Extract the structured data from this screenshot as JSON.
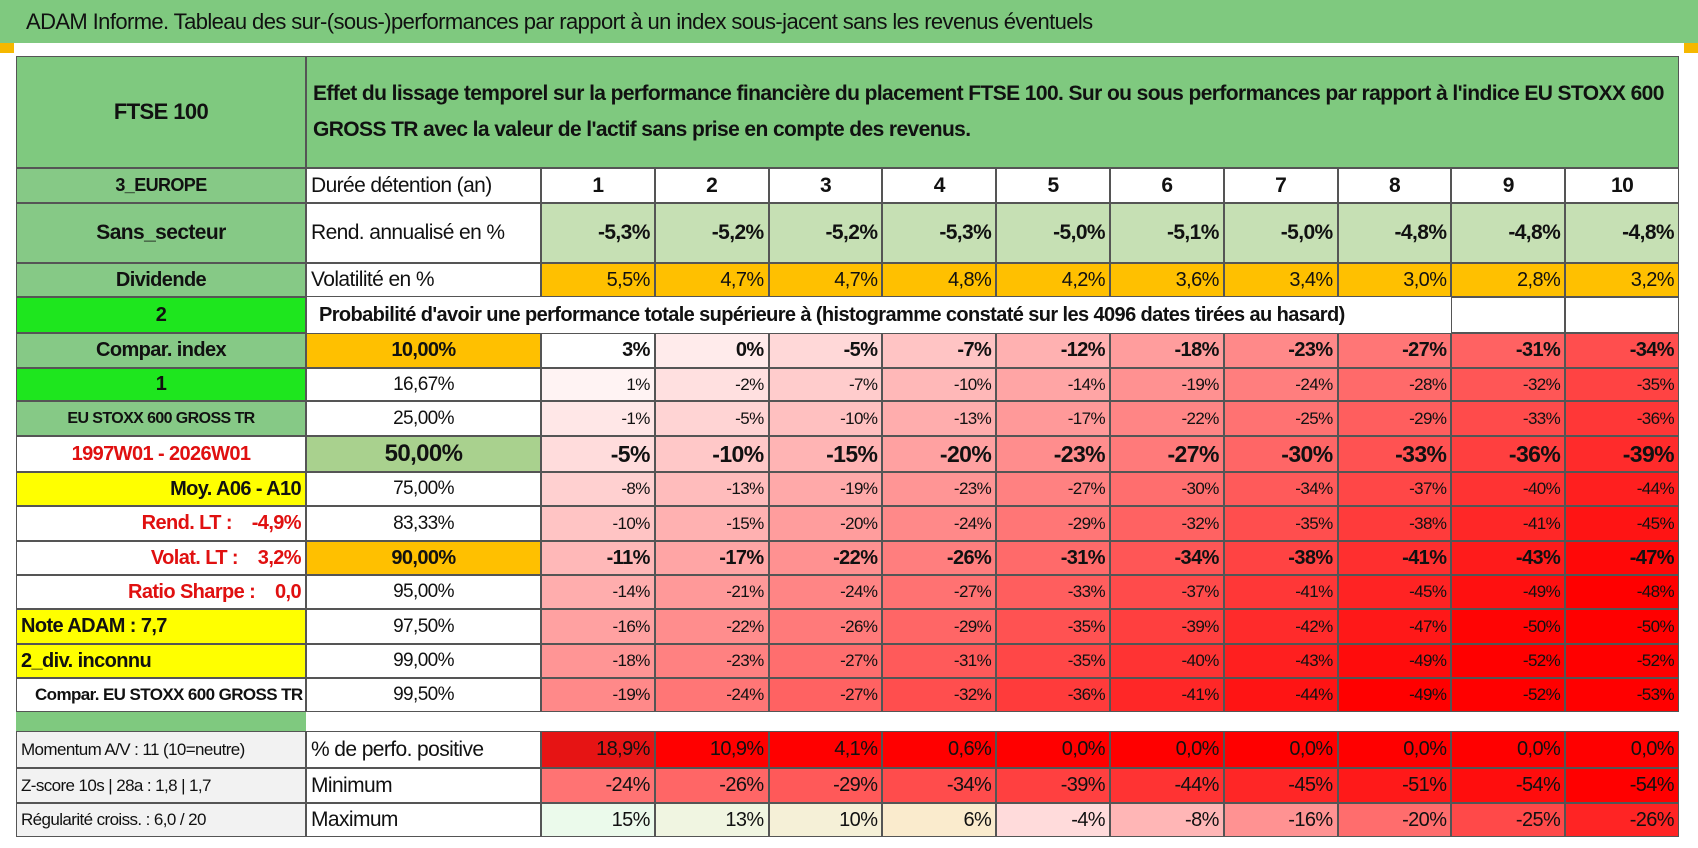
{
  "title": "ADAM Informe. Tableau des sur-(sous-)performances par rapport à un index sous-jacent sans les revenus éventuels",
  "header": {
    "left": "FTSE 100",
    "description": "Effet du lissage temporel sur la performance financière du placement FTSE 100. Sur ou sous performances par rapport à l'indice EU STOXX 600 GROSS TR avec la valeur de l'actif sans prise en compte des revenus."
  },
  "rows": [
    {
      "label": "3_EUROPE",
      "name": "Durée détention (an)",
      "cells": [
        "1",
        "2",
        "3",
        "4",
        "5",
        "6",
        "7",
        "8",
        "9",
        "10"
      ]
    },
    {
      "label": "Sans_secteur",
      "name": "Rend. annualisé en %",
      "cells": [
        "-5,3%",
        "-5,2%",
        "-5,2%",
        "-5,3%",
        "-5,0%",
        "-5,1%",
        "-5,0%",
        "-4,8%",
        "-4,8%",
        "-4,8%"
      ]
    },
    {
      "label": "Dividende",
      "name": "Volatilité en %",
      "cells": [
        "5,5%",
        "4,7%",
        "4,7%",
        "4,8%",
        "4,2%",
        "3,6%",
        "3,4%",
        "3,0%",
        "2,8%",
        "3,2%"
      ]
    },
    {
      "label": "2",
      "name": "Probabilité d'avoir une performance totale supérieure à (histogramme constaté sur les 4096 dates tirées au hasard)"
    },
    {
      "label": "Compar. index",
      "name": "10,00%",
      "cells": [
        "3%",
        "0%",
        "-5%",
        "-7%",
        "-12%",
        "-18%",
        "-23%",
        "-27%",
        "-31%",
        "-34%"
      ]
    },
    {
      "label": "1",
      "name": "16,67%",
      "cells": [
        "1%",
        "-2%",
        "-7%",
        "-10%",
        "-14%",
        "-19%",
        "-24%",
        "-28%",
        "-32%",
        "-35%"
      ]
    },
    {
      "label": "EU STOXX 600 GROSS TR",
      "name": "25,00%",
      "cells": [
        "-1%",
        "-5%",
        "-10%",
        "-13%",
        "-17%",
        "-22%",
        "-25%",
        "-29%",
        "-33%",
        "-36%"
      ]
    },
    {
      "label": "1997W01 - 2026W01",
      "name": "50,00%",
      "cells": [
        "-5%",
        "-10%",
        "-15%",
        "-20%",
        "-23%",
        "-27%",
        "-30%",
        "-33%",
        "-36%",
        "-39%"
      ]
    },
    {
      "label": "Moy. A06 - A10",
      "name": "75,00%",
      "cells": [
        "-8%",
        "-13%",
        "-19%",
        "-23%",
        "-27%",
        "-30%",
        "-34%",
        "-37%",
        "-40%",
        "-44%"
      ]
    },
    {
      "label": "Rend. LT :    -4,9%",
      "name": "83,33%",
      "cells": [
        "-10%",
        "-15%",
        "-20%",
        "-24%",
        "-29%",
        "-32%",
        "-35%",
        "-38%",
        "-41%",
        "-45%"
      ]
    },
    {
      "label": "Volat. LT :    3,2%",
      "name": "90,00%",
      "cells": [
        "-11%",
        "-17%",
        "-22%",
        "-26%",
        "-31%",
        "-34%",
        "-38%",
        "-41%",
        "-43%",
        "-47%"
      ]
    },
    {
      "label": "Ratio Sharpe :    0,0",
      "name": "95,00%",
      "cells": [
        "-14%",
        "-21%",
        "-24%",
        "-27%",
        "-33%",
        "-37%",
        "-41%",
        "-45%",
        "-49%",
        "-48%"
      ]
    },
    {
      "label": "Note ADAM : 7,7",
      "name": "97,50%",
      "cells": [
        "-16%",
        "-22%",
        "-26%",
        "-29%",
        "-35%",
        "-39%",
        "-42%",
        "-47%",
        "-50%",
        "-50%"
      ]
    },
    {
      "label": "2_div. inconnu",
      "name": "99,00%",
      "cells": [
        "-18%",
        "-23%",
        "-27%",
        "-31%",
        "-35%",
        "-40%",
        "-43%",
        "-49%",
        "-52%",
        "-52%"
      ]
    },
    {
      "label": "Compar. EU STOXX 600 GROSS TR",
      "name": "99,50%",
      "cells": [
        "-19%",
        "-24%",
        "-27%",
        "-32%",
        "-36%",
        "-41%",
        "-44%",
        "-49%",
        "-52%",
        "-53%"
      ]
    }
  ],
  "stats": [
    {
      "label": "Momentum A/V : 11 (10=neutre)",
      "name": "% de perfo. positive",
      "cells": [
        "18,9%",
        "10,9%",
        "4,1%",
        "0,6%",
        "0,0%",
        "0,0%",
        "0,0%",
        "0,0%",
        "0,0%",
        "0,0%"
      ]
    },
    {
      "label": "Z-score 10s | 28a : 1,8 | 1,7",
      "name": "Minimum",
      "cells": [
        "-24%",
        "-26%",
        "-29%",
        "-34%",
        "-39%",
        "-44%",
        "-45%",
        "-51%",
        "-54%",
        "-54%"
      ]
    },
    {
      "label": "Régularité croiss. : 6,0 / 20",
      "name": "Maximum",
      "cells": [
        "15%",
        "13%",
        "10%",
        "6%",
        "-4%",
        "-8%",
        "-16%",
        "-20%",
        "-25%",
        "-26%"
      ]
    }
  ]
}
